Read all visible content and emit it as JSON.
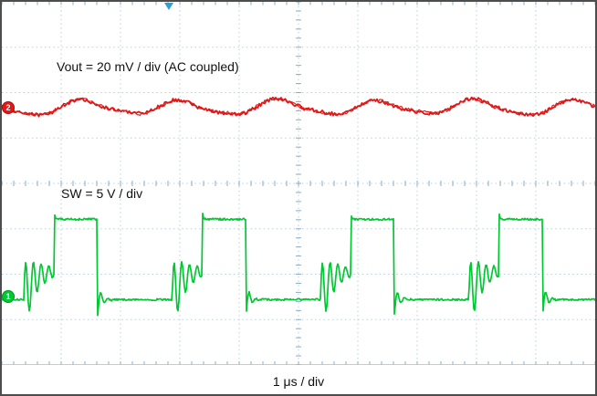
{
  "screen": {
    "bg": "#ffffff",
    "border": "#4d4d4d",
    "grid": "#b8cfdd",
    "tick": "#8aaec6",
    "text": "#111111"
  },
  "annotations": {
    "vout": "Vout = 20 mV / div (AC coupled)",
    "sw": "SW = 5 V / div"
  },
  "timebase": {
    "label": "1 μs / div"
  },
  "trigger": {
    "color": "#2b9fd8",
    "position_div": 2.82
  },
  "channels": [
    {
      "id": "ch2",
      "marker": "2",
      "color": "#e51616",
      "zero_div_from_top": 2.33
    },
    {
      "id": "ch1",
      "marker": "1",
      "color": "#00c832",
      "zero_div_from_top": 6.49
    }
  ],
  "chart_data": {
    "type": "line",
    "instrument": "oscilloscope",
    "title": "",
    "x_axis": {
      "label": "1 μs / div",
      "divisions": 10,
      "us_per_div": 1,
      "total_us": 10
    },
    "y_axis": {
      "divisions": 8
    },
    "grid": true,
    "series": [
      {
        "name": "Vout",
        "annotation": "Vout = 20 mV / div (AC coupled)",
        "color": "#e51616",
        "mv_per_div": 20,
        "coupling": "AC",
        "waveform": "output_ripple",
        "center_div_from_top": 2.33,
        "ripple_pp_mv": 6,
        "noise_pp_mv": 1.5,
        "period_us": 1.66,
        "peak_offset_us": 1.35
      },
      {
        "name": "SW",
        "annotation": "SW = 5 V / div",
        "color": "#00c832",
        "v_per_div": 5,
        "waveform": "dcm_switch_node",
        "zero_div_from_top": 6.49,
        "high_v": 8.5,
        "low_v": -0.35,
        "period_us": 2.5,
        "first_rise_us": 0.88,
        "on_time_us": 0.73,
        "fall_undershoot_v": -2.2,
        "dcm_ring": {
          "start_after_rise_us": 1.99,
          "center_v": 2.8,
          "amplitude_v": 4.0,
          "period_us": 0.13,
          "decay_tau_us": 0.25
        }
      }
    ]
  }
}
